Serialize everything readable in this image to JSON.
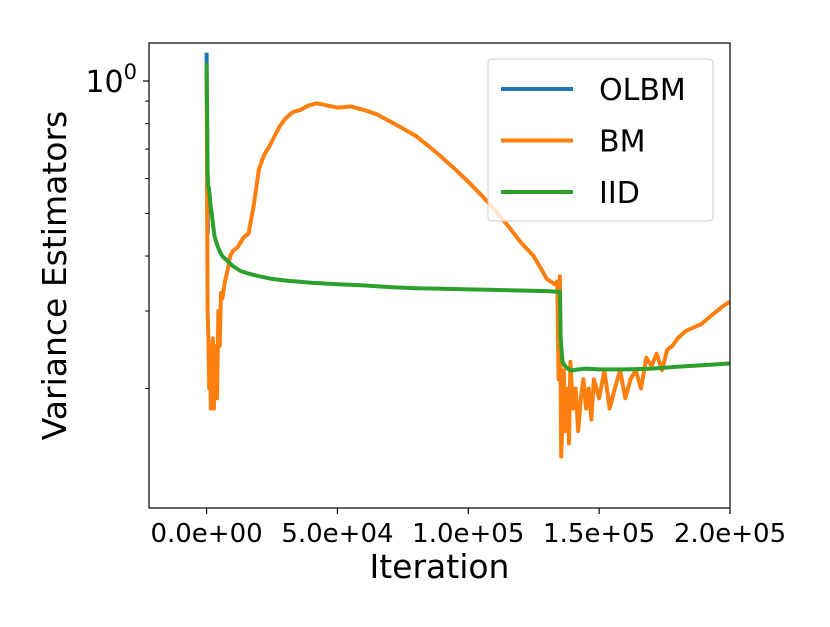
{
  "chart_data": {
    "type": "line",
    "title": "",
    "xlabel": "Iteration",
    "ylabel": "Variance Estimators",
    "x_scale": "linear",
    "y_scale": "log",
    "xlim": [
      -22000,
      200000
    ],
    "ylim": [
      0.107,
      1.22
    ],
    "x_ticks": [
      0,
      50000,
      100000,
      150000,
      200000
    ],
    "x_tick_labels": [
      "0.0e+00",
      "5.0e+04",
      "1.0e+05",
      "1.5e+05",
      "2.0e+05"
    ],
    "y_major_ticks": [
      1.0
    ],
    "y_major_tick_labels": [
      "10^0"
    ],
    "y_minor_ticks": [
      0.2,
      0.3,
      0.4,
      0.5,
      0.6,
      0.7,
      0.8,
      0.9
    ],
    "grid": false,
    "legend_position": "upper right",
    "series": [
      {
        "name": "OLBM",
        "color": "#1f77b4",
        "x": [
          0,
          300,
          500
        ],
        "y": [
          1.16,
          0.6,
          0.45
        ]
      },
      {
        "name": "BM",
        "color": "#ff7f0e",
        "x": [
          0,
          200,
          400,
          700,
          1000,
          1300,
          1600,
          2000,
          2400,
          2800,
          3200,
          3600,
          4000,
          4500,
          5000,
          5500,
          6000,
          7000,
          8000,
          9000,
          10000,
          12000,
          14000,
          16000,
          18000,
          20000,
          22000,
          24000,
          26000,
          28000,
          30000,
          33000,
          36000,
          39000,
          42000,
          46000,
          50000,
          55000,
          60000,
          65000,
          70000,
          75000,
          80000,
          85000,
          90000,
          95000,
          100000,
          105000,
          110000,
          115000,
          120000,
          125000,
          130000,
          133000,
          134000,
          134500,
          135000,
          135500,
          136000,
          136500,
          137000,
          137500,
          138000,
          138500,
          139000,
          140000,
          141000,
          142000,
          143000,
          144000,
          145000,
          146000,
          147000,
          148000,
          150000,
          152000,
          154000,
          156000,
          158000,
          160000,
          162000,
          164000,
          166000,
          168000,
          170000,
          172000,
          174000,
          176000,
          178000,
          180000,
          183000,
          186000,
          189000,
          192000,
          195000,
          198000,
          200000
        ],
        "y": [
          1.05,
          0.55,
          0.3,
          0.26,
          0.2,
          0.25,
          0.18,
          0.22,
          0.26,
          0.18,
          0.23,
          0.25,
          0.19,
          0.3,
          0.25,
          0.33,
          0.32,
          0.35,
          0.37,
          0.4,
          0.41,
          0.42,
          0.44,
          0.45,
          0.52,
          0.63,
          0.68,
          0.71,
          0.75,
          0.79,
          0.82,
          0.85,
          0.86,
          0.88,
          0.89,
          0.88,
          0.87,
          0.875,
          0.86,
          0.84,
          0.81,
          0.78,
          0.75,
          0.71,
          0.67,
          0.63,
          0.59,
          0.55,
          0.51,
          0.47,
          0.43,
          0.4,
          0.355,
          0.345,
          0.35,
          0.21,
          0.36,
          0.14,
          0.17,
          0.22,
          0.16,
          0.2,
          0.19,
          0.15,
          0.23,
          0.18,
          0.2,
          0.16,
          0.19,
          0.21,
          0.18,
          0.2,
          0.17,
          0.21,
          0.19,
          0.22,
          0.18,
          0.2,
          0.22,
          0.19,
          0.21,
          0.22,
          0.2,
          0.235,
          0.225,
          0.24,
          0.22,
          0.245,
          0.25,
          0.26,
          0.27,
          0.275,
          0.28,
          0.29,
          0.3,
          0.31,
          0.315
        ]
      },
      {
        "name": "IID",
        "color": "#2ca02c",
        "x": [
          0,
          100,
          200,
          300,
          400,
          600,
          900,
          1200,
          1500,
          2000,
          2500,
          3000,
          4000,
          5000,
          6000,
          8000,
          10000,
          13000,
          16000,
          20000,
          25000,
          30000,
          40000,
          50000,
          60000,
          70000,
          80000,
          90000,
          100000,
          110000,
          120000,
          130000,
          134000,
          135000,
          135300,
          135600,
          136000,
          137000,
          138000,
          139000,
          140000,
          142000,
          145000,
          150000,
          160000,
          170000,
          180000,
          190000,
          200000
        ],
        "y": [
          1.1,
          0.95,
          0.85,
          0.7,
          0.62,
          0.58,
          0.57,
          0.55,
          0.52,
          0.5,
          0.47,
          0.445,
          0.425,
          0.41,
          0.4,
          0.39,
          0.38,
          0.37,
          0.365,
          0.36,
          0.355,
          0.352,
          0.348,
          0.345,
          0.343,
          0.34,
          0.338,
          0.337,
          0.336,
          0.335,
          0.334,
          0.333,
          0.332,
          0.332,
          0.26,
          0.245,
          0.23,
          0.225,
          0.222,
          0.22,
          0.22,
          0.221,
          0.222,
          0.221,
          0.221,
          0.222,
          0.224,
          0.226,
          0.228
        ]
      }
    ]
  }
}
